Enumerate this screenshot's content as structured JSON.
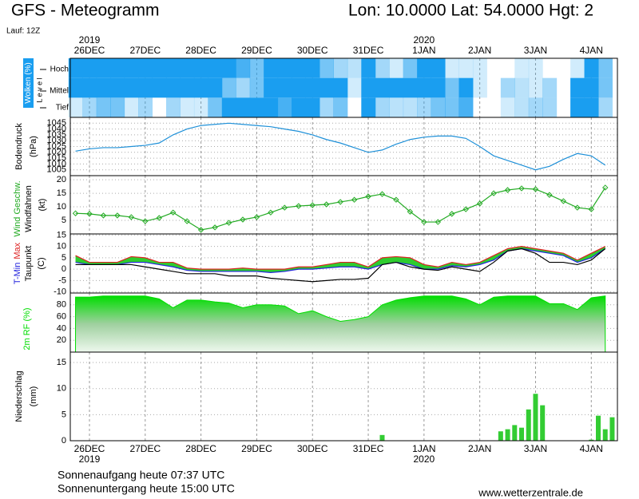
{
  "header": {
    "title": "GFS - Meteogramm",
    "location": "Lon: 10.0000 Lat: 54.0000 Hgt: 2",
    "run": "Lauf: 12Z"
  },
  "footer": {
    "sunrise": "Sonnenaufgang heute 07:37 UTC",
    "sunset": "Sonnenuntergang heute 15:00 UTC",
    "source": "www.wetterzentrale.de"
  },
  "time_axis": {
    "xlim": [
      -8.25,
      227.25
    ],
    "xticks": [
      {
        "value": 0,
        "label": "26DEC"
      },
      {
        "value": 24,
        "label": "27DEC"
      },
      {
        "value": 48,
        "label": "28DEC"
      },
      {
        "value": 72,
        "label": "29DEC"
      },
      {
        "value": 96,
        "label": "30DEC"
      },
      {
        "value": 120,
        "label": "31DEC"
      },
      {
        "value": 144,
        "label": "1JAN"
      },
      {
        "value": 168,
        "label": "2JAN"
      },
      {
        "value": 192,
        "label": "3JAN"
      },
      {
        "value": 216,
        "label": "4JAN"
      }
    ],
    "year_ticks": [
      {
        "value": 0,
        "label": "2019"
      },
      {
        "value": 144,
        "label": "2020"
      }
    ],
    "x": [
      -6,
      0,
      6,
      12,
      18,
      24,
      30,
      36,
      42,
      48,
      54,
      60,
      66,
      72,
      78,
      84,
      90,
      96,
      102,
      108,
      114,
      120,
      126,
      132,
      138,
      144,
      150,
      156,
      162,
      168,
      174,
      180,
      186,
      192,
      198,
      204,
      210,
      216,
      222
    ]
  },
  "chart_data": [
    {
      "type": "heatmap",
      "ylabel": "Wolken (%)",
      "level_label": "L e v e l",
      "color": "#1a9ef0",
      "rows": [
        {
          "name": "Hoch",
          "values": [
            100,
            100,
            100,
            100,
            100,
            100,
            100,
            100,
            100,
            100,
            100,
            100,
            80,
            60,
            100,
            100,
            100,
            100,
            60,
            40,
            30,
            100,
            40,
            20,
            60,
            100,
            100,
            20,
            20,
            20,
            0,
            0,
            20,
            20,
            0,
            0,
            20,
            100,
            60
          ]
        },
        {
          "name": "Mittel",
          "values": [
            100,
            100,
            100,
            100,
            100,
            100,
            100,
            100,
            100,
            100,
            100,
            60,
            40,
            60,
            100,
            100,
            100,
            100,
            100,
            100,
            20,
            100,
            100,
            100,
            100,
            100,
            100,
            60,
            100,
            20,
            0,
            40,
            30,
            20,
            40,
            0,
            100,
            100,
            60
          ]
        },
        {
          "name": "Tief",
          "values": [
            20,
            40,
            60,
            60,
            20,
            40,
            0,
            40,
            20,
            20,
            60,
            100,
            100,
            100,
            100,
            80,
            100,
            100,
            40,
            60,
            0,
            100,
            40,
            30,
            30,
            40,
            60,
            60,
            80,
            0,
            0,
            20,
            30,
            40,
            40,
            0,
            100,
            100,
            40
          ]
        }
      ]
    },
    {
      "type": "line",
      "ylabel": "Bodendruck",
      "unit": "(hPa)",
      "ylim": [
        1000,
        1050
      ],
      "yticks": [
        1005,
        1010,
        1015,
        1020,
        1025,
        1030,
        1035,
        1040,
        1045
      ],
      "grid": true,
      "series": [
        {
          "color": "#1e90d8",
          "values": [
            1021,
            1023,
            1024,
            1024,
            1025,
            1026,
            1028,
            1035,
            1040,
            1043,
            1044,
            1045,
            1044,
            1043,
            1042,
            1040,
            1038,
            1035,
            1031,
            1028,
            1024,
            1020,
            1022,
            1027,
            1031,
            1033,
            1034,
            1034,
            1032,
            1025,
            1017,
            1013,
            1009,
            1005,
            1008,
            1014,
            1019,
            1017,
            1009
          ]
        }
      ]
    },
    {
      "type": "line",
      "ylabel": "Windfahnen",
      "unit": "(kt)",
      "ylim": [
        0,
        21.5
      ],
      "yticks": [
        5,
        10,
        15,
        20
      ],
      "grid": true,
      "markers": true,
      "series": [
        {
          "name": "Wind Geschw.",
          "color": "#22aa22",
          "values": [
            7.6,
            7.4,
            6.8,
            6.8,
            6.2,
            4.7,
            5.9,
            7.9,
            4.7,
            1.5,
            2.4,
            4.1,
            5.3,
            6.2,
            7.9,
            9.7,
            10.3,
            10.6,
            10.9,
            11.8,
            12.6,
            13.8,
            14.7,
            12.6,
            8.2,
            4.4,
            4.4,
            7.4,
            9.1,
            11.2,
            15,
            16.2,
            16.8,
            16.5,
            14.4,
            12.1,
            9.7,
            9.1,
            17.1
          ]
        }
      ]
    },
    {
      "type": "line",
      "unit": "(C)",
      "ylim": [
        -10.5,
        15.5
      ],
      "yticks": [
        -10,
        -5,
        0,
        5,
        10,
        15
      ],
      "grid": true,
      "fill_between": "#2ecc2e",
      "series": [
        {
          "name": "T-Min",
          "color": "#2222dd",
          "values": [
            3,
            2,
            2,
            2,
            3,
            3,
            2,
            1,
            -0.5,
            -1,
            -1,
            -1,
            -1,
            -1,
            -1.5,
            -1,
            0,
            0,
            0.5,
            1,
            1,
            0,
            2,
            3,
            2,
            0,
            0,
            1.5,
            1,
            2,
            4,
            8,
            9,
            8,
            7,
            6,
            3,
            5,
            9
          ]
        },
        {
          "name": "Max",
          "color": "#dd2222",
          "values": [
            6,
            3,
            3,
            3,
            5.5,
            5,
            3,
            3,
            0.5,
            0,
            0,
            0,
            0.5,
            0,
            0,
            0,
            1,
            1,
            2,
            3,
            3,
            1,
            5,
            5.5,
            5,
            2,
            1,
            3,
            2,
            3,
            6,
            9,
            10,
            9,
            8,
            7,
            4,
            7,
            10
          ]
        },
        {
          "name": "Taupunkt",
          "color": "#000000",
          "values": [
            2,
            2,
            2,
            2,
            2,
            1,
            0,
            -1,
            -2,
            -2,
            -2,
            -3,
            -3,
            -3,
            -4,
            -4.5,
            -5,
            -5.5,
            -5,
            -4.5,
            -4.5,
            -4,
            2,
            3,
            1,
            0,
            -0.5,
            1,
            0,
            -1,
            3,
            8,
            9,
            7,
            3,
            3,
            2,
            4,
            9
          ]
        }
      ]
    },
    {
      "type": "area",
      "ylim": [
        0,
        100
      ],
      "yticks": [
        20,
        40,
        60,
        80
      ],
      "grid": true,
      "series": [
        {
          "name": "2m RF (%)",
          "color": "#00dd00",
          "values": [
            93,
            93,
            95,
            95,
            95,
            95,
            90,
            75,
            88,
            88,
            85,
            83,
            75,
            80,
            80,
            78,
            65,
            70,
            60,
            52,
            55,
            60,
            80,
            88,
            92,
            95,
            95,
            95,
            90,
            80,
            93,
            95,
            95,
            95,
            82,
            82,
            72,
            92,
            95
          ]
        }
      ]
    },
    {
      "type": "bar",
      "ylabel": "Niederschlag",
      "unit": "(mm)",
      "ylim": [
        0,
        17
      ],
      "yticks": [
        0,
        5,
        10,
        15
      ],
      "grid": true,
      "color": "#33cc33",
      "x": [
        126,
        177,
        180,
        183,
        186,
        189,
        192,
        195,
        216,
        219,
        222,
        225
      ],
      "values": [
        1.1,
        1.8,
        2.2,
        3,
        2.5,
        6,
        9,
        6.8,
        0.2,
        4.8,
        2.2,
        4.5
      ]
    }
  ]
}
